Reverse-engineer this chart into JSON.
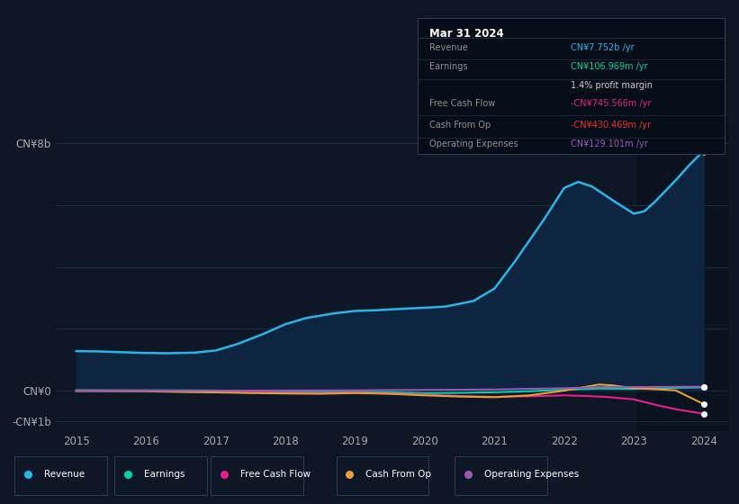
{
  "bg_color": "#0e1726",
  "plot_bg_color": "#0e1726",
  "grid_color": "#1a2d45",
  "xlabel_ticks": [
    "2015",
    "2016",
    "2017",
    "2018",
    "2019",
    "2020",
    "2021",
    "2022",
    "2023",
    "2024"
  ],
  "ylim": [
    -1300000000.0,
    8800000000.0
  ],
  "xlim_left": 2014.7,
  "xlim_right": 2024.35,
  "yticks": [
    8000000000.0,
    6000000000.0,
    4000000000.0,
    2000000000.0,
    0,
    -1000000000.0
  ],
  "ytick_labels_shown": {
    "8000000000": "CN¥8b",
    "0": "CN¥0",
    "-1000000000": "-CN¥1b"
  },
  "lines": {
    "Revenue": {
      "color": "#29b5e8",
      "fill_color": "#0d2540",
      "data": [
        [
          2015.0,
          1280000000.0
        ],
        [
          2015.3,
          1270000000.0
        ],
        [
          2015.7,
          1240000000.0
        ],
        [
          2016.0,
          1220000000.0
        ],
        [
          2016.3,
          1210000000.0
        ],
        [
          2016.7,
          1230000000.0
        ],
        [
          2017.0,
          1300000000.0
        ],
        [
          2017.3,
          1500000000.0
        ],
        [
          2017.7,
          1850000000.0
        ],
        [
          2018.0,
          2150000000.0
        ],
        [
          2018.3,
          2350000000.0
        ],
        [
          2018.7,
          2500000000.0
        ],
        [
          2019.0,
          2580000000.0
        ],
        [
          2019.3,
          2600000000.0
        ],
        [
          2019.7,
          2650000000.0
        ],
        [
          2020.0,
          2680000000.0
        ],
        [
          2020.3,
          2720000000.0
        ],
        [
          2020.7,
          2900000000.0
        ],
        [
          2021.0,
          3300000000.0
        ],
        [
          2021.3,
          4200000000.0
        ],
        [
          2021.7,
          5500000000.0
        ],
        [
          2022.0,
          6550000000.0
        ],
        [
          2022.2,
          6750000000.0
        ],
        [
          2022.4,
          6600000000.0
        ],
        [
          2022.7,
          6150000000.0
        ],
        [
          2023.0,
          5720000000.0
        ],
        [
          2023.15,
          5800000000.0
        ],
        [
          2023.3,
          6100000000.0
        ],
        [
          2023.6,
          6800000000.0
        ],
        [
          2023.8,
          7300000000.0
        ],
        [
          2024.0,
          7752000000.0
        ]
      ]
    },
    "Earnings": {
      "color": "#00d4aa",
      "data": [
        [
          2015.0,
          15000000.0
        ],
        [
          2016.0,
          12000000.0
        ],
        [
          2016.5,
          10000000.0
        ],
        [
          2017.0,
          5000000.0
        ],
        [
          2017.5,
          -10000000.0
        ],
        [
          2018.0,
          -30000000.0
        ],
        [
          2018.5,
          -40000000.0
        ],
        [
          2019.0,
          -35000000.0
        ],
        [
          2019.5,
          -50000000.0
        ],
        [
          2020.0,
          -80000000.0
        ],
        [
          2020.5,
          -70000000.0
        ],
        [
          2021.0,
          -50000000.0
        ],
        [
          2021.5,
          -20000000.0
        ],
        [
          2022.0,
          30000000.0
        ],
        [
          2022.5,
          70000000.0
        ],
        [
          2023.0,
          60000000.0
        ],
        [
          2023.5,
          90000000.0
        ],
        [
          2024.0,
          107000000.0
        ]
      ]
    },
    "Free Cash Flow": {
      "color": "#e91e8c",
      "data": [
        [
          2015.0,
          5000000.0
        ],
        [
          2016.0,
          3000000.0
        ],
        [
          2016.5,
          -10000000.0
        ],
        [
          2017.0,
          -40000000.0
        ],
        [
          2017.5,
          -55000000.0
        ],
        [
          2018.0,
          -70000000.0
        ],
        [
          2018.5,
          -80000000.0
        ],
        [
          2019.0,
          -65000000.0
        ],
        [
          2019.5,
          -90000000.0
        ],
        [
          2020.0,
          -130000000.0
        ],
        [
          2020.5,
          -170000000.0
        ],
        [
          2021.0,
          -200000000.0
        ],
        [
          2021.5,
          -180000000.0
        ],
        [
          2022.0,
          -150000000.0
        ],
        [
          2022.3,
          -170000000.0
        ],
        [
          2022.6,
          -200000000.0
        ],
        [
          2023.0,
          -280000000.0
        ],
        [
          2023.3,
          -450000000.0
        ],
        [
          2023.6,
          -600000000.0
        ],
        [
          2024.0,
          -746000000.0
        ]
      ]
    },
    "Cash From Op": {
      "color": "#e8a030",
      "data": [
        [
          2015.0,
          -10000000.0
        ],
        [
          2016.0,
          -20000000.0
        ],
        [
          2016.5,
          -40000000.0
        ],
        [
          2017.0,
          -55000000.0
        ],
        [
          2017.5,
          -75000000.0
        ],
        [
          2018.0,
          -90000000.0
        ],
        [
          2018.5,
          -100000000.0
        ],
        [
          2019.0,
          -75000000.0
        ],
        [
          2019.5,
          -100000000.0
        ],
        [
          2020.0,
          -150000000.0
        ],
        [
          2020.5,
          -190000000.0
        ],
        [
          2021.0,
          -210000000.0
        ],
        [
          2021.5,
          -150000000.0
        ],
        [
          2022.0,
          0.0
        ],
        [
          2022.3,
          120000000.0
        ],
        [
          2022.5,
          200000000.0
        ],
        [
          2022.7,
          170000000.0
        ],
        [
          2023.0,
          80000000.0
        ],
        [
          2023.3,
          50000000.0
        ],
        [
          2023.6,
          10000000.0
        ],
        [
          2024.0,
          -430000000.0
        ]
      ]
    },
    "Operating Expenses": {
      "color": "#9b59b6",
      "data": [
        [
          2015.0,
          -5000000.0
        ],
        [
          2016.0,
          -5000000.0
        ],
        [
          2017.0,
          0.0
        ],
        [
          2018.0,
          5000000.0
        ],
        [
          2019.0,
          10000000.0
        ],
        [
          2019.5,
          20000000.0
        ],
        [
          2020.0,
          25000000.0
        ],
        [
          2020.5,
          30000000.0
        ],
        [
          2021.0,
          40000000.0
        ],
        [
          2021.5,
          60000000.0
        ],
        [
          2022.0,
          80000000.0
        ],
        [
          2022.3,
          100000000.0
        ],
        [
          2022.5,
          115000000.0
        ],
        [
          2022.7,
          120000000.0
        ],
        [
          2023.0,
          118000000.0
        ],
        [
          2023.3,
          122000000.0
        ],
        [
          2023.6,
          125000000.0
        ],
        [
          2024.0,
          129000000.0
        ]
      ]
    }
  },
  "dark_band_x": 2023.05,
  "info_box": {
    "title": "Mar 31 2024",
    "rows": [
      {
        "label": "Revenue",
        "value": "CN¥7.752b /yr",
        "value_color": "#29b5e8",
        "has_subrow": false
      },
      {
        "label": "Earnings",
        "value": "CN¥106.969m /yr",
        "value_color": "#00d4aa",
        "has_subrow": true,
        "subrow": "1.4% profit margin"
      },
      {
        "label": "Free Cash Flow",
        "value": "-CN¥745.566m /yr",
        "value_color": "#e91e8c",
        "has_subrow": false
      },
      {
        "label": "Cash From Op",
        "value": "-CN¥430.469m /yr",
        "value_color": "#e83030",
        "has_subrow": false
      },
      {
        "label": "Operating Expenses",
        "value": "CN¥129.101m /yr",
        "value_color": "#9b59b6",
        "has_subrow": false
      }
    ]
  },
  "legend": [
    {
      "label": "Revenue",
      "color": "#29b5e8"
    },
    {
      "label": "Earnings",
      "color": "#00d4aa"
    },
    {
      "label": "Free Cash Flow",
      "color": "#e91e8c"
    },
    {
      "label": "Cash From Op",
      "color": "#e8a030"
    },
    {
      "label": "Operating Expenses",
      "color": "#9b59b6"
    }
  ]
}
